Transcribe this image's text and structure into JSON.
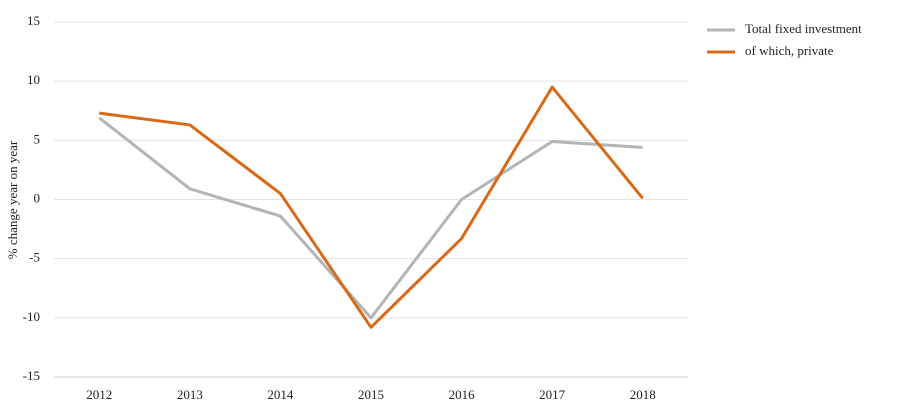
{
  "chart_data": {
    "type": "line",
    "y_label": "% change year on year",
    "categories": [
      "2012",
      "2013",
      "2014",
      "2015",
      "2016",
      "2017",
      "2018"
    ],
    "series": [
      {
        "name": "Total fixed investment",
        "color": "#b2b5b5",
        "values": [
          6.9,
          0.9,
          -1.4,
          -10.0,
          0.0,
          4.9,
          4.4
        ]
      },
      {
        "name": "of which, private",
        "color": "#d86a17",
        "values": [
          7.3,
          6.3,
          0.5,
          -10.8,
          -3.3,
          9.5,
          0.1
        ]
      }
    ],
    "ylim": [
      -15,
      15
    ],
    "yticks": [
      -15,
      -10,
      -5,
      0,
      5,
      10,
      15
    ],
    "grid": true,
    "legend": "top-right"
  }
}
